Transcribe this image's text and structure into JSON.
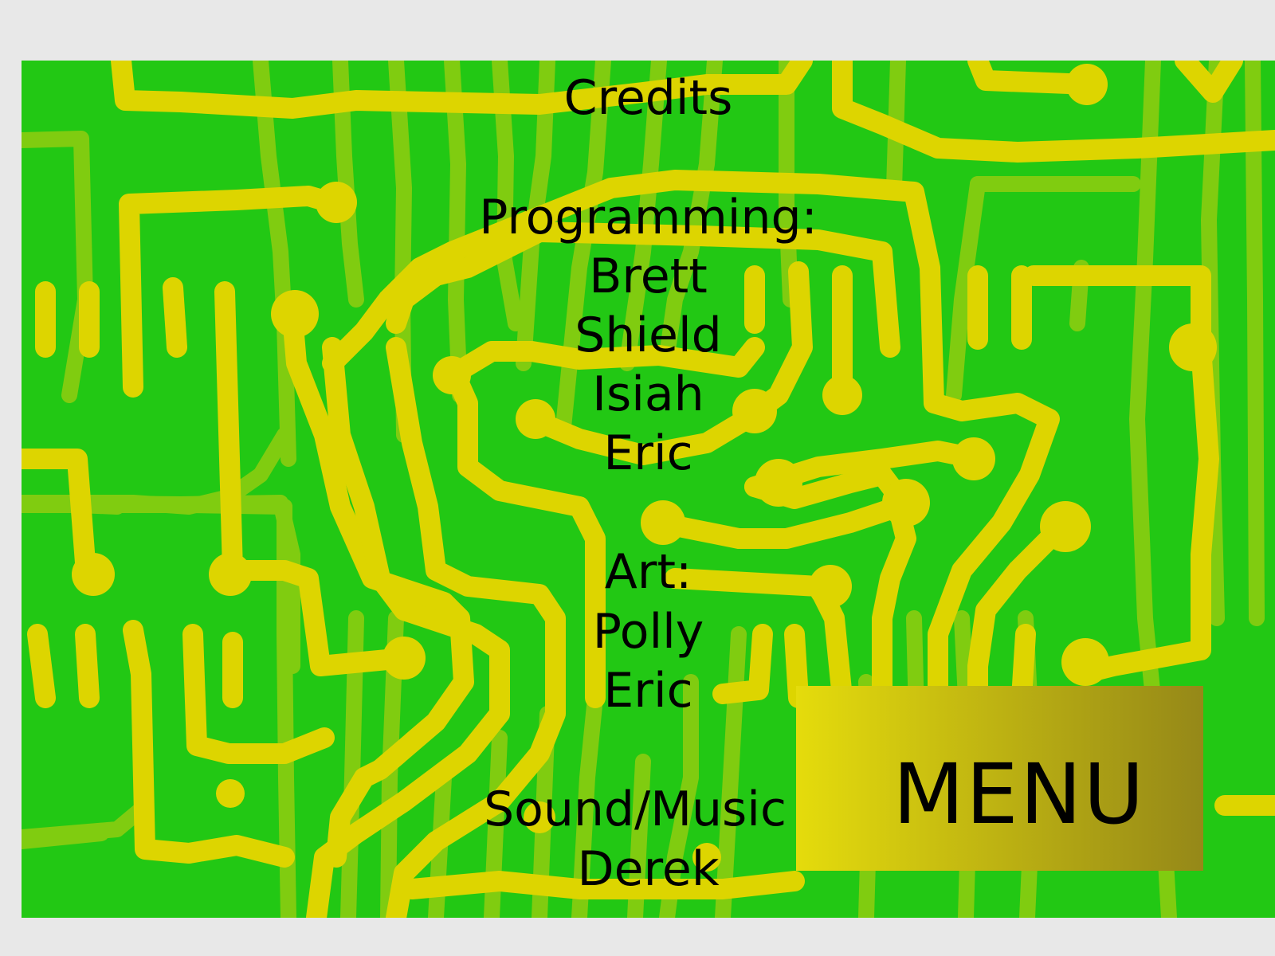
{
  "screen": {
    "background_color": "#22c814",
    "page_color": "#e8e8e8"
  },
  "circuit_colors": {
    "trace_dark": "#ddd500",
    "trace_light": "#80cc10"
  },
  "credits": {
    "title": "Credits",
    "programming_heading": "Programming:",
    "programmers": [
      "Brett",
      "Shield",
      "Isiah",
      "Eric"
    ],
    "art_heading": "Art:",
    "artists": [
      "Polly",
      "Eric"
    ],
    "sound_heading": "Sound/Music",
    "sound": [
      "Derek"
    ]
  },
  "menu_button": {
    "label": "MENU",
    "gradient_start": "#e5dc0c",
    "gradient_end": "#958818"
  }
}
